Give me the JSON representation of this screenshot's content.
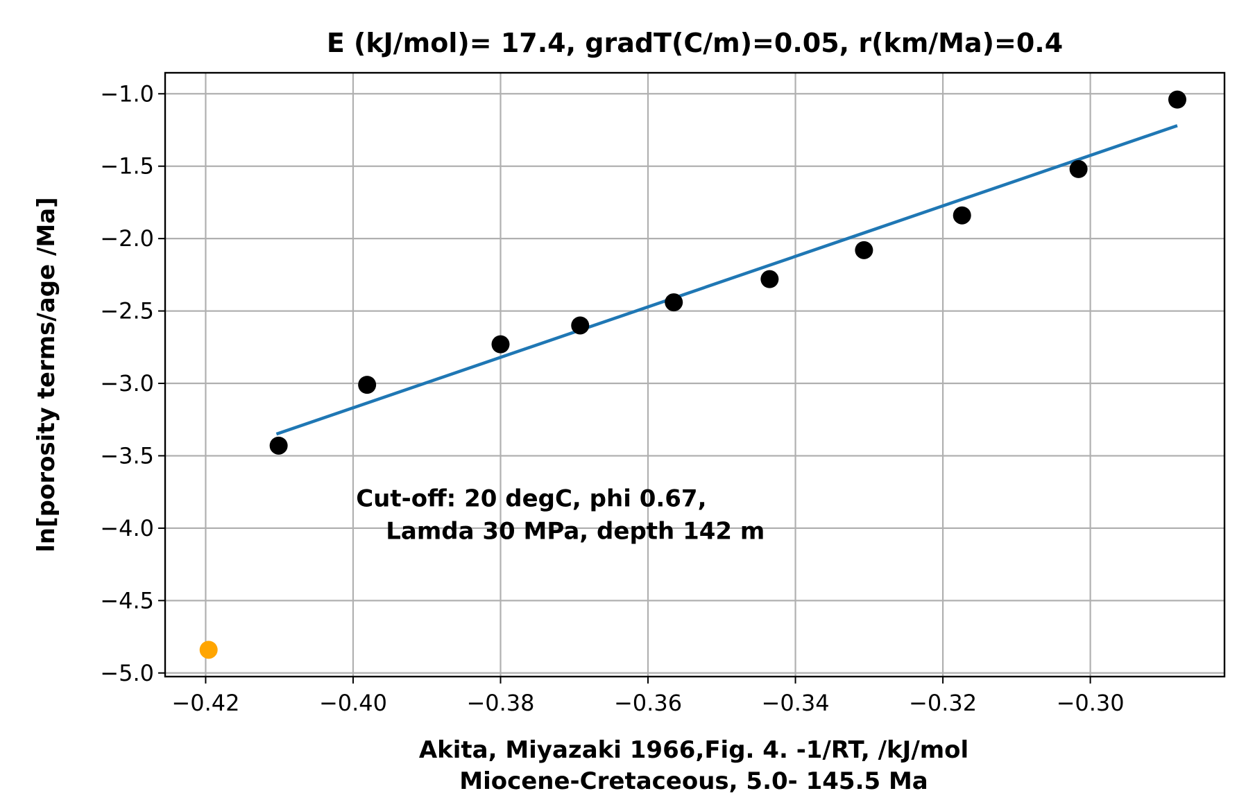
{
  "chart_data": {
    "type": "scatter",
    "title": "E (kJ/mol)= 17.4, gradT(C/m)=0.05, r(km/Ma)=0.4",
    "xlabel_lines": [
      "Akita, Miyazaki 1966,Fig. 4.   -1/RT, /kJ/mol",
      "Miocene-Cretaceous, 5.0- 145.5 Ma"
    ],
    "ylabel": "ln[porosity terms/age /Ma]",
    "xlim": [
      -0.4255,
      -0.2818
    ],
    "ylim": [
      -5.025,
      -0.855
    ],
    "x_ticks": [
      -0.42,
      -0.4,
      -0.38,
      -0.36,
      -0.34,
      -0.32,
      -0.3
    ],
    "x_tick_labels": [
      "−0.42",
      "−0.40",
      "−0.38",
      "−0.36",
      "−0.34",
      "−0.32",
      "−0.30"
    ],
    "y_ticks": [
      -1.0,
      -1.5,
      -2.0,
      -2.5,
      -3.0,
      -3.5,
      -4.0,
      -4.5,
      -5.0
    ],
    "y_tick_labels": [
      "−1.0",
      "−1.5",
      "−2.0",
      "−2.5",
      "−3.0",
      "−3.5",
      "−4.0",
      "−4.5",
      "−5.0"
    ],
    "grid": true,
    "series": [
      {
        "type": "scatter",
        "color": "#000000",
        "x": [
          -0.4101,
          -0.3981,
          -0.38,
          -0.3692,
          -0.3565,
          -0.3435,
          -0.3307,
          -0.3174,
          -0.3016,
          -0.2882
        ],
        "y": [
          -3.43,
          -3.01,
          -2.73,
          -2.6,
          -2.44,
          -2.28,
          -2.08,
          -1.84,
          -1.52,
          -1.04
        ]
      },
      {
        "type": "scatter",
        "color": "#ffa500",
        "x": [
          -0.4196
        ],
        "y": [
          -4.84
        ]
      },
      {
        "type": "line",
        "color": "#1f77b4",
        "x": [
          -0.4104,
          -0.2882
        ],
        "y": [
          -3.35,
          -1.22
        ]
      }
    ],
    "annotation_lines": [
      "Cut-off: 20 degC, phi 0.67,",
      "Lamda 30 MPa, depth 142 m"
    ],
    "annotation_position": {
      "x": -0.3996,
      "y": -3.85
    }
  }
}
